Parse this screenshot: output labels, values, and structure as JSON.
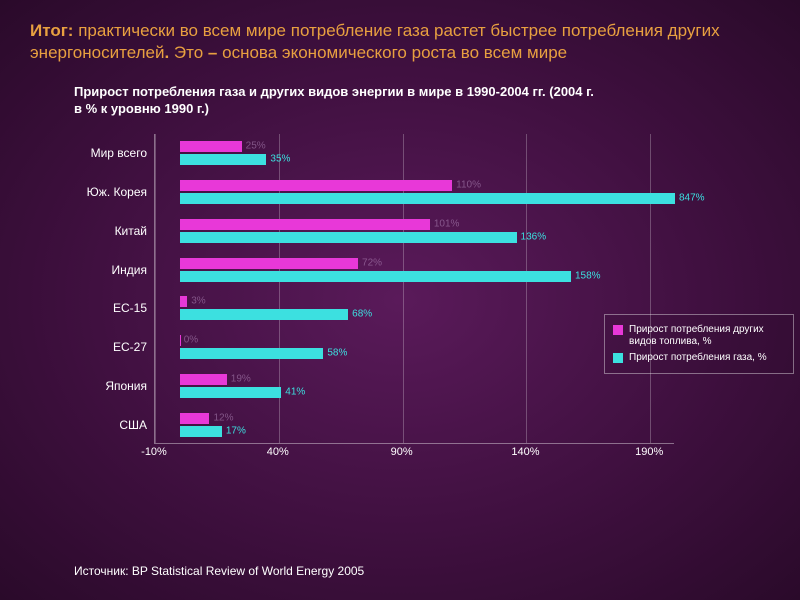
{
  "title_prefix": "Итог",
  "title_rest": " практически во всем мире потребление газа растет быстрее потребления других энергоносителей",
  "title_sep": ". Это ",
  "title_dash": "– ",
  "title_tail": "основа экономического роста во всем мире",
  "title_color": "#e8a040",
  "subtitle": "Прирост потребления газа и других видов энергии в мире в 1990-2004 гг. (2004 г. в % к уровню 1990 г.)",
  "chart": {
    "type": "bar-horizontal-grouped",
    "x_min": -10,
    "x_max": 200,
    "x_ticks": [
      -10,
      40,
      90,
      140,
      190
    ],
    "x_tick_labels": [
      "-10%",
      "40%",
      "90%",
      "140%",
      "190%"
    ],
    "categories": [
      "Мир всего",
      "Юж. Корея",
      "Китай",
      "Индия",
      "ЕС-15",
      "ЕС-27",
      "Япония",
      "США"
    ],
    "series": [
      {
        "name": "Прирост потребления других видов топлива, %",
        "color": "#e838d8",
        "values": [
          25,
          110,
          101,
          72,
          3,
          0,
          19,
          12
        ],
        "labels": [
          "25%",
          "110%",
          "101%",
          "72%",
          "3%",
          "0%",
          "19%",
          "12%"
        ],
        "dim": true
      },
      {
        "name": "Прирост потребления газа, %",
        "color": "#3ce0e0",
        "values": [
          35,
          847,
          136,
          158,
          68,
          58,
          41,
          17
        ],
        "labels": [
          "35%",
          "847%",
          "136%",
          "158%",
          "68%",
          "58%",
          "41%",
          "17%"
        ],
        "dim": false
      }
    ],
    "background": "transparent",
    "grid_color": "rgba(255,255,255,0.25)",
    "axis_color": "rgba(255,255,255,0.4)",
    "label_fontsize": 12
  },
  "legend": {
    "items": [
      {
        "label": "Прирост потребления других видов топлива, %",
        "color": "#e838d8"
      },
      {
        "label": "Прирост потребления газа, %",
        "color": "#3ce0e0"
      }
    ]
  },
  "source": "Источник: BP Statistical Review of World Energy 2005"
}
